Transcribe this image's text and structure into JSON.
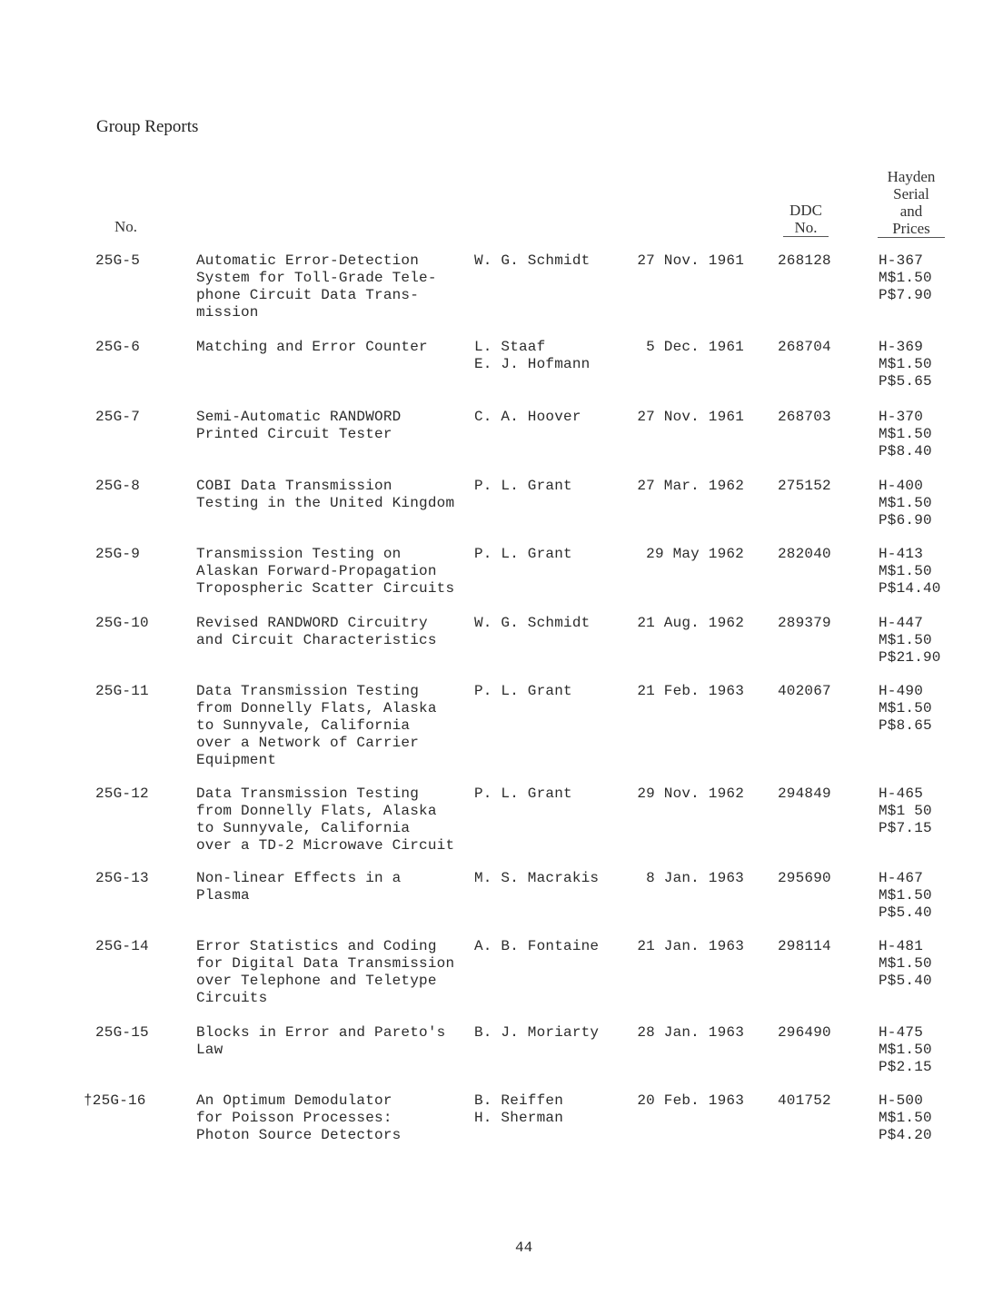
{
  "heading": "Group Reports",
  "columns": {
    "no": "No.",
    "ddc": [
      "DDC",
      "No."
    ],
    "hayden": [
      "Hayden",
      "Serial",
      "and",
      "Prices"
    ]
  },
  "rows": [
    {
      "no": "25G-5",
      "title": "Automatic Error-Detection\nSystem for Toll-Grade Tele-\nphone Circuit Data Trans-\nmission",
      "author": "W. G. Schmidt",
      "date": "27 Nov. 1961",
      "ddc": "268128",
      "prices": "H-367\nM$1.50\nP$7.90"
    },
    {
      "no": "25G-6",
      "title": "Matching and Error Counter",
      "author": "L. Staaf\nE. J. Hofmann",
      "date": "5 Dec. 1961",
      "ddc": "268704",
      "prices": "H-369\nM$1.50\nP$5.65"
    },
    {
      "no": "25G-7",
      "title": "Semi-Automatic RANDWORD\nPrinted Circuit Tester",
      "author": "C. A. Hoover",
      "date": "27 Nov. 1961",
      "ddc": "268703",
      "prices": "H-370\nM$1.50\nP$8.40"
    },
    {
      "no": "25G-8",
      "title": "COBI Data Transmission\nTesting in the United Kingdom",
      "author": "P. L. Grant",
      "date": "27 Mar. 1962",
      "ddc": "275152",
      "prices": "H-400\nM$1.50\nP$6.90"
    },
    {
      "no": "25G-9",
      "title": "Transmission Testing on\nAlaskan Forward-Propagation\nTropospheric Scatter Circuits",
      "author": "P. L. Grant",
      "date": "29 May 1962",
      "ddc": "282040",
      "prices": "H-413\nM$1.50\nP$14.40"
    },
    {
      "no": "25G-10",
      "title": "Revised RANDWORD Circuitry\nand Circuit Characteristics",
      "author": "W. G. Schmidt",
      "date": "21 Aug. 1962",
      "ddc": "289379",
      "prices": "H-447\nM$1.50\nP$21.90"
    },
    {
      "no": "25G-11",
      "title": "Data Transmission Testing\nfrom Donnelly Flats, Alaska\nto Sunnyvale, California\nover a Network of Carrier\nEquipment",
      "author": "P. L. Grant",
      "date": "21 Feb. 1963",
      "ddc": "402067",
      "prices": "H-490\nM$1.50\nP$8.65"
    },
    {
      "no": "25G-12",
      "title": "Data Transmission Testing\nfrom Donnelly Flats, Alaska\nto Sunnyvale, California\nover a TD-2 Microwave Circuit",
      "author": "P. L. Grant",
      "date": "29 Nov. 1962",
      "ddc": "294849",
      "prices": "H-465\nM$1 50\nP$7.15"
    },
    {
      "no": "25G-13",
      "title": "Non-linear Effects in a\nPlasma",
      "author": "M. S. Macrakis",
      "date": "8 Jan. 1963",
      "ddc": "295690",
      "prices": "H-467\nM$1.50\nP$5.40"
    },
    {
      "no": "25G-14",
      "title": "Error Statistics and Coding\nfor Digital Data Transmission\nover Telephone and Teletype\nCircuits",
      "author": "A. B. Fontaine",
      "date": "21 Jan. 1963",
      "ddc": "298114",
      "prices": "H-481\nM$1.50\nP$5.40"
    },
    {
      "no": "25G-15",
      "title": "Blocks in Error and Pareto's\nLaw",
      "author": "B. J. Moriarty",
      "date": "28 Jan. 1963",
      "ddc": "296490",
      "prices": "H-475\nM$1.50\nP$2.15"
    },
    {
      "no": "†25G-16",
      "title": "An Optimum Demodulator\nfor Poisson Processes:\nPhoton Source Detectors",
      "author": "B. Reiffen\nH. Sherman",
      "date": "20 Feb. 1963",
      "ddc": "401752",
      "prices": "H-500\nM$1.50\nP$4.20"
    }
  ],
  "page_number": "44"
}
